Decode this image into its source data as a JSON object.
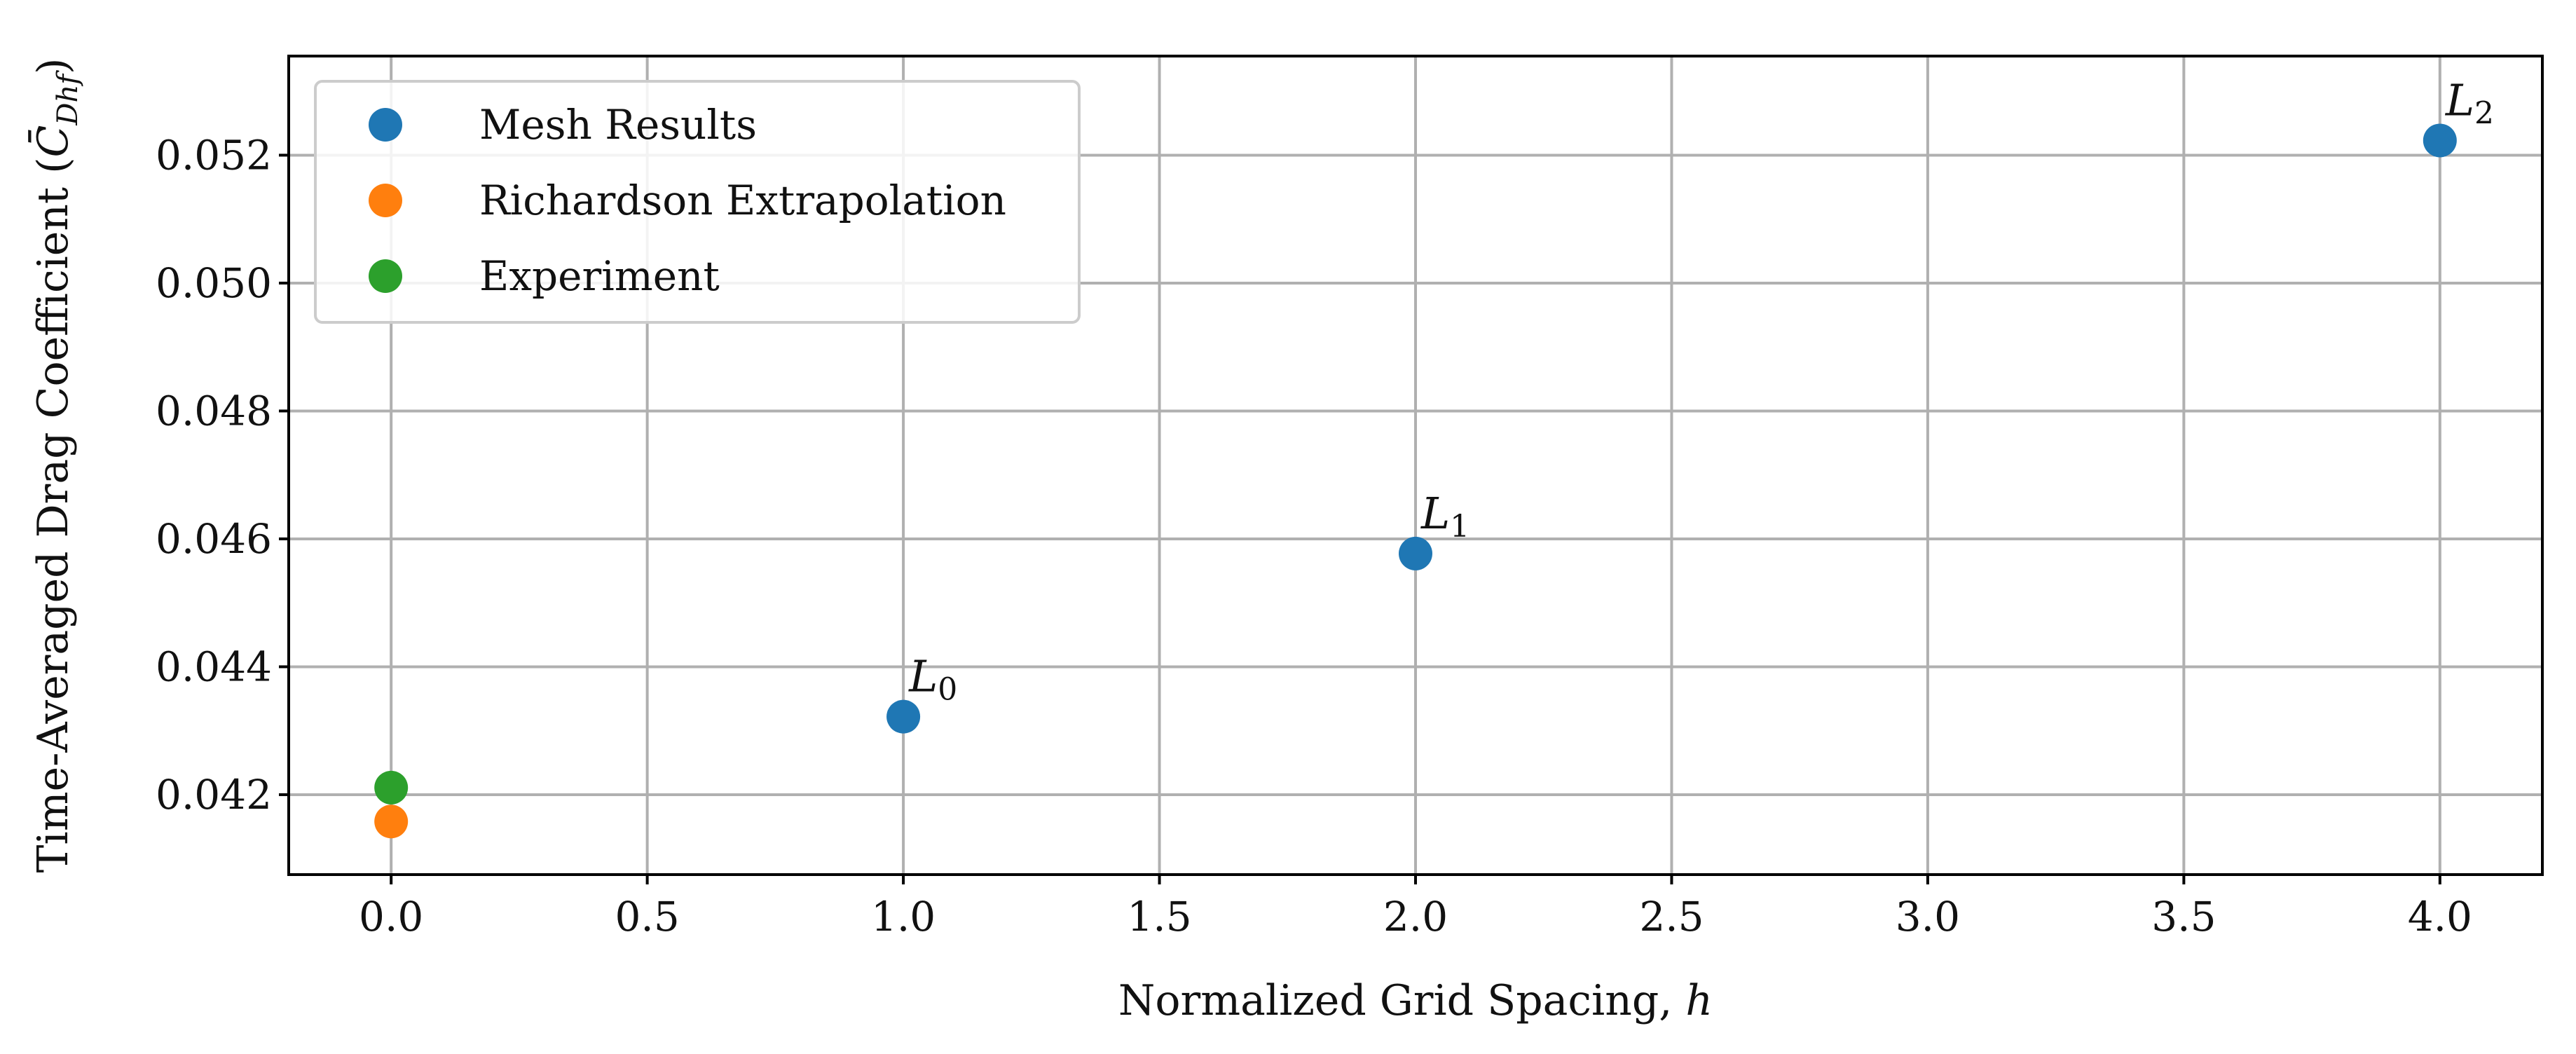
{
  "chart_data": {
    "type": "scatter",
    "title": "",
    "xlabel": "Normalized Grid Spacing, h",
    "xlabel_main": "Normalized Grid Spacing, ",
    "xlabel_var": "h",
    "ylabel": "Time-Averaged Drag Coefficient (C̄_Dhf)",
    "ylabel_main": "Time-Averaged Drag Coefficient (",
    "ylabel_symbol": "C̄",
    "ylabel_sub": "Dhf",
    "ylabel_close": ")",
    "xlim": [
      -0.2,
      4.2
    ],
    "ylim": [
      0.04075,
      0.05355
    ],
    "xticks": [
      0.0,
      0.5,
      1.0,
      1.5,
      2.0,
      2.5,
      3.0,
      3.5,
      4.0
    ],
    "xtick_labels": [
      "0.0",
      "0.5",
      "1.0",
      "1.5",
      "2.0",
      "2.5",
      "3.0",
      "3.5",
      "4.0"
    ],
    "yticks": [
      0.042,
      0.044,
      0.046,
      0.048,
      0.05,
      0.052
    ],
    "ytick_labels": [
      "0.042",
      "0.044",
      "0.046",
      "0.048",
      "0.050",
      "0.052"
    ],
    "grid": true,
    "legend_position": "upper-left",
    "series": [
      {
        "name": "Mesh Results",
        "color": "#1f77b4",
        "points": [
          {
            "x": 1.0,
            "y": 0.04322,
            "label": "L",
            "sub": "0"
          },
          {
            "x": 2.0,
            "y": 0.04577,
            "label": "L",
            "sub": "1"
          },
          {
            "x": 4.0,
            "y": 0.05223,
            "label": "L",
            "sub": "2"
          }
        ]
      },
      {
        "name": "Richardson Extrapolation",
        "color": "#ff7f0e",
        "points": [
          {
            "x": 0.0,
            "y": 0.04158
          }
        ]
      },
      {
        "name": "Experiment",
        "color": "#2ca02c",
        "points": [
          {
            "x": 0.0,
            "y": 0.04211
          }
        ]
      }
    ]
  }
}
